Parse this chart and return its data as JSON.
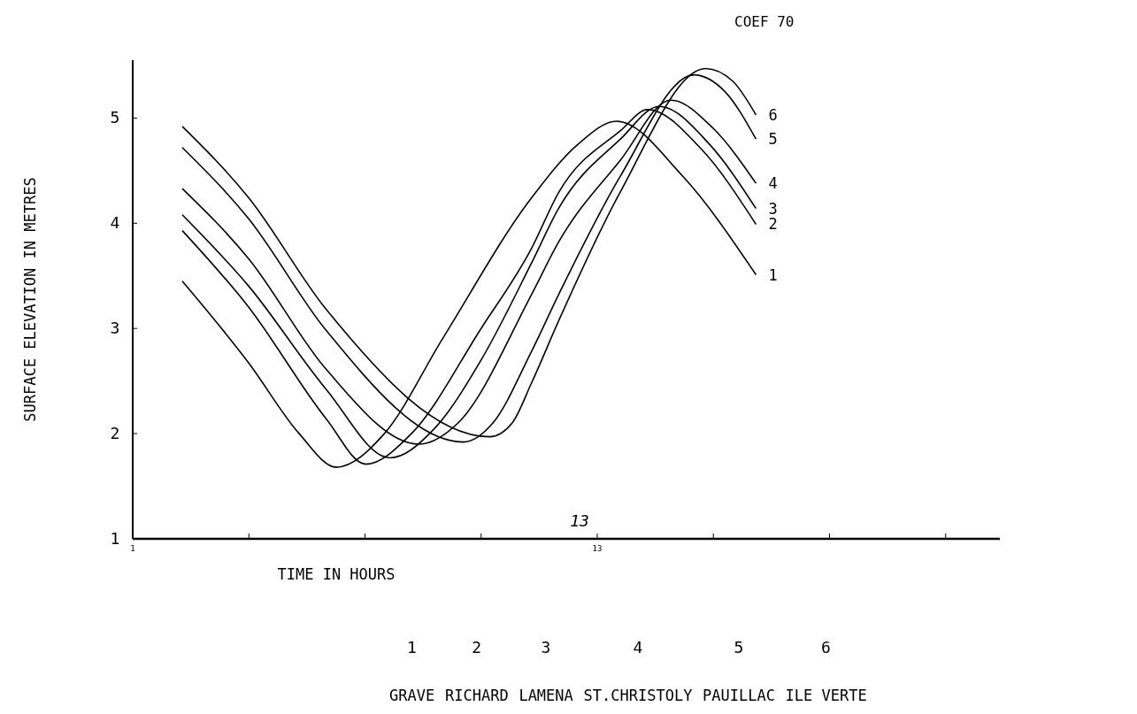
{
  "chart_data": {
    "type": "line",
    "title": "COEF 70",
    "xlabel": "TIME IN HOURS",
    "ylabel": "SURFACE ELEVATION IN METRES",
    "xlim": [
      1,
      23.4
    ],
    "ylim": [
      1,
      5.55
    ],
    "xticks": [
      1,
      {
        "value": 4,
        "label": null
      },
      {
        "value": 7,
        "label": null
      },
      {
        "value": 10,
        "label": null
      },
      13,
      {
        "value": 16,
        "label": null
      },
      {
        "value": 19,
        "label": null
      },
      {
        "value": 22,
        "label": null
      }
    ],
    "yticks": [
      1,
      2,
      3,
      4,
      5
    ],
    "grid": false,
    "marker": "none",
    "line_style": "solid",
    "series": [
      {
        "name": "1",
        "color": "#000000",
        "x": [
          2.28,
          4,
          5.3,
          6.26,
          7.5,
          9,
          11.3,
          12.5,
          13.5,
          15.2,
          17.1
        ],
        "values": [
          3.45,
          2.67,
          2.0,
          1.68,
          2.0,
          2.9,
          4.24,
          4.75,
          4.97,
          4.45,
          3.51
        ]
      },
      {
        "name": "2",
        "color": "#000000",
        "x": [
          2.28,
          4,
          6,
          7.02,
          8.2,
          10,
          11.3,
          12,
          13.6,
          14.3,
          15.7,
          17.1
        ],
        "values": [
          3.93,
          3.2,
          2.14,
          1.71,
          2.0,
          3.0,
          3.76,
          4.29,
          4.88,
          5.08,
          4.7,
          3.99
        ]
      },
      {
        "name": "3",
        "color": "#000000",
        "x": [
          2.28,
          4,
          6,
          7.64,
          8.8,
          10,
          11.3,
          12,
          13.6,
          14.6,
          15.9,
          17.1
        ],
        "values": [
          4.08,
          3.4,
          2.42,
          1.77,
          2.05,
          2.7,
          3.62,
          4.14,
          4.8,
          5.11,
          4.75,
          4.14
        ]
      },
      {
        "name": "4",
        "color": "#000000",
        "x": [
          2.28,
          4,
          6,
          8.39,
          9.4,
          11.3,
          12,
          13.6,
          14.9,
          16,
          17.1
        ],
        "values": [
          4.33,
          3.66,
          2.61,
          1.9,
          2.1,
          3.32,
          3.82,
          4.6,
          5.17,
          4.9,
          4.38
        ]
      },
      {
        "name": "5",
        "color": "#000000",
        "x": [
          2.28,
          4,
          6,
          9.54,
          10.3,
          11.3,
          12,
          13.6,
          15.5,
          16.3,
          17.1
        ],
        "values": [
          4.72,
          4.04,
          2.98,
          1.92,
          2.1,
          2.78,
          3.32,
          4.45,
          5.41,
          5.25,
          4.8
        ]
      },
      {
        "name": "6",
        "color": "#000000",
        "x": [
          2.28,
          4,
          6,
          10.22,
          10.8,
          11.3,
          12,
          13.6,
          15.8,
          16.5,
          17.1
        ],
        "values": [
          4.92,
          4.24,
          3.18,
          1.97,
          2.1,
          2.48,
          3.07,
          4.3,
          5.47,
          5.35,
          5.03
        ]
      }
    ],
    "annotations": [
      "13",
      "GRAVE",
      "RICHARD",
      "LAMENA",
      "ST.CHRISTOLY",
      "PAUILLAC",
      "ILE VERTE"
    ]
  }
}
